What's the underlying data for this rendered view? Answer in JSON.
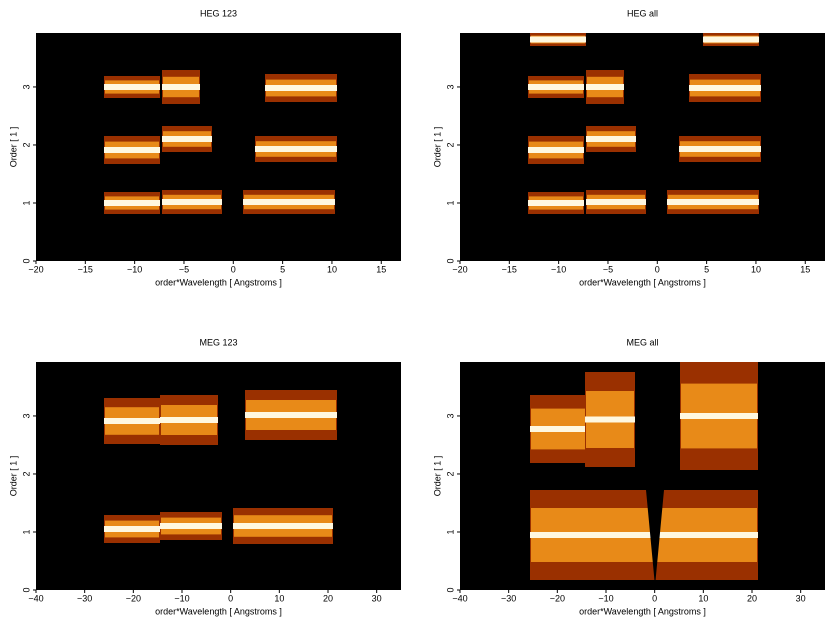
{
  "chart_data": [
    {
      "type": "image",
      "title": "HEG 123",
      "x_label": "order*Wavelength [ Angstroms ]",
      "y_label": "Order [ 1 ]",
      "xlim": [
        -20,
        17
      ],
      "xticks": [
        {
          "value": -20,
          "label": "−20"
        },
        {
          "value": -15,
          "label": "−15"
        },
        {
          "value": -10,
          "label": "−10"
        },
        {
          "value": -5,
          "label": "−5"
        },
        0,
        5,
        10,
        15
      ],
      "ylim": [
        0,
        3.93
      ],
      "yticks": [
        0,
        1,
        2,
        3
      ]
    },
    {
      "type": "image",
      "title": "HEG all",
      "x_label": "order*Wavelength [ Angstroms ]",
      "y_label": "Order [ 1 ]",
      "xlim": [
        -20,
        17
      ],
      "xticks": [
        {
          "value": -20,
          "label": "−20"
        },
        {
          "value": -15,
          "label": "−15"
        },
        {
          "value": -10,
          "label": "−10"
        },
        {
          "value": -5,
          "label": "−5"
        },
        0,
        5,
        10,
        15
      ],
      "ylim": [
        0,
        3.93
      ],
      "yticks": [
        0,
        1,
        2,
        3
      ]
    },
    {
      "type": "image",
      "title": "MEG 123",
      "x_label": "order*Wavelength [ Angstroms ]",
      "y_label": "Order [ 1 ]",
      "xlim": [
        -40,
        35
      ],
      "xticks": [
        {
          "value": -40,
          "label": "−40"
        },
        {
          "value": -30,
          "label": "−30"
        },
        {
          "value": -20,
          "label": "−20"
        },
        {
          "value": -10,
          "label": "−10"
        },
        0,
        10,
        20,
        30
      ],
      "ylim": [
        0,
        3.93
      ],
      "yticks": [
        0,
        1,
        2,
        3
      ]
    },
    {
      "type": "image",
      "title": "MEG all",
      "x_label": "order*Wavelength [ Angstroms ]",
      "y_label": "Order [ 1 ]",
      "xlim": [
        -40,
        35
      ],
      "xticks": [
        {
          "value": -40,
          "label": "−40"
        },
        {
          "value": -30,
          "label": "−30"
        },
        {
          "value": -20,
          "label": "−20"
        },
        {
          "value": -10,
          "label": "−10"
        },
        0,
        10,
        20,
        30
      ],
      "ylim": [
        0,
        3.93
      ],
      "yticks": [
        0,
        1,
        2,
        3
      ]
    }
  ]
}
